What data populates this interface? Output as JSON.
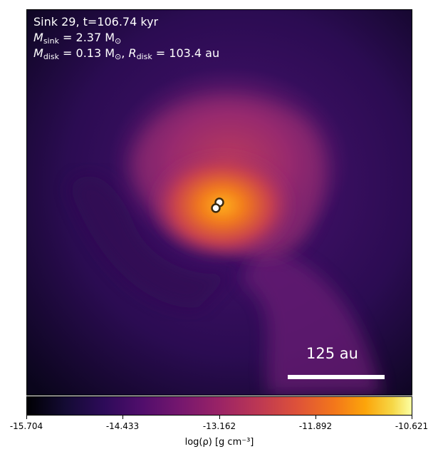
{
  "info": {
    "title": "Sink 29, t=106.74 kyr",
    "sink_mass_symbol": "M",
    "sink_mass_sub": "sink",
    "sink_mass_value": " = 2.37 M",
    "sun_symbol": "⊙",
    "disk_mass_symbol": "M",
    "disk_mass_sub": "disk",
    "disk_mass_value": " = 0.13 M",
    "disk_radius_symbol": "R",
    "disk_radius_sub": "disk",
    "disk_radius_value": " = 103.4 au"
  },
  "scalebar": {
    "label": "125 au"
  },
  "colorbar": {
    "ticks": [
      "-15.704",
      "-14.433",
      "-13.162",
      "-11.892",
      "-10.621"
    ],
    "label": "log(ρ) [g cm⁻³]",
    "colormap": "inferno"
  },
  "sinks_count": 2,
  "colors": {
    "background": "#2a0c4a",
    "envelope": "#8a2a6e",
    "core": "#f58a1c",
    "sink_fill": "#ffffff",
    "sink_edge": "#3a2a10"
  }
}
